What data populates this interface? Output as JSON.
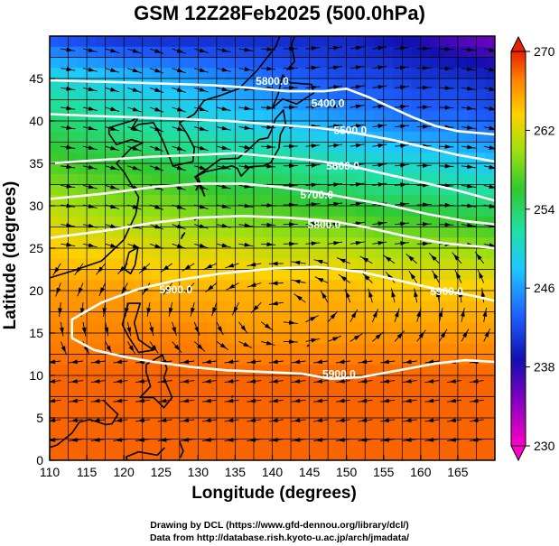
{
  "title": "GSM 12Z28Feb2025 (500.0hPa)",
  "xlabel": "Longitude (degrees)",
  "ylabel": "Latitude  (degrees)",
  "credit_line1": "Drawing by DCL (https://www.gfd-dennou.org/library/dcl/)",
  "credit_line2": "Data from http://database.rish.kyoto-u.ac.jp/arch/jmadata/",
  "chart_data": {
    "type": "heatmap",
    "x_range": [
      110,
      170
    ],
    "y_range": [
      0,
      50
    ],
    "x_ticks": [
      "110",
      "115",
      "120",
      "125",
      "130",
      "135",
      "140",
      "145",
      "150",
      "155",
      "160",
      "165"
    ],
    "y_ticks": [
      "0",
      "5",
      "10",
      "15",
      "20",
      "25",
      "30",
      "35",
      "40",
      "45"
    ],
    "colorbar": {
      "field": "temperature",
      "range": [
        230,
        270
      ],
      "tick_labels": [
        "270",
        "262",
        "254",
        "246",
        "238",
        "230"
      ]
    },
    "contour_labels": [
      "5800.0",
      "5400.0",
      "5500.0",
      "5600.0",
      "5700.0",
      "5800.0",
      "5900.0",
      "5900.0",
      "5900.0"
    ],
    "contours": [
      {
        "level": 5400,
        "points": [
          [
            110,
            44.8
          ],
          [
            118,
            44.6
          ],
          [
            125,
            44.4
          ],
          [
            132,
            44.2
          ],
          [
            137,
            43.9
          ],
          [
            142,
            43.5
          ],
          [
            147,
            43.5
          ],
          [
            150,
            43.8
          ],
          [
            153,
            42.8
          ],
          [
            156,
            41.6
          ],
          [
            159,
            40.4
          ],
          [
            162,
            39.4
          ],
          [
            165,
            38.8
          ],
          [
            170,
            38.4
          ]
        ]
      },
      {
        "level": 5500,
        "points": [
          [
            110,
            40.8
          ],
          [
            116,
            40.6
          ],
          [
            122,
            40.4
          ],
          [
            128,
            40.2
          ],
          [
            134,
            40.0
          ],
          [
            140,
            39.6
          ],
          [
            146,
            39.2
          ],
          [
            151,
            38.6
          ],
          [
            156,
            37.8
          ],
          [
            160,
            37.0
          ],
          [
            165,
            36.0
          ],
          [
            170,
            35.2
          ]
        ]
      },
      {
        "level": 5600,
        "points": [
          [
            110,
            35.0
          ],
          [
            117,
            35.4
          ],
          [
            124,
            35.8
          ],
          [
            130,
            36.0
          ],
          [
            135,
            36.2
          ],
          [
            140,
            35.8
          ],
          [
            145,
            35.4
          ],
          [
            150,
            34.8
          ],
          [
            155,
            33.8
          ],
          [
            160,
            32.8
          ],
          [
            165,
            31.8
          ],
          [
            170,
            30.6
          ]
        ]
      },
      {
        "level": 5700,
        "points": [
          [
            110,
            30.8
          ],
          [
            117,
            31.4
          ],
          [
            124,
            32.2
          ],
          [
            130,
            32.6
          ],
          [
            136,
            32.6
          ],
          [
            141,
            32.2
          ],
          [
            146,
            31.6
          ],
          [
            151,
            30.8
          ],
          [
            156,
            30.0
          ],
          [
            161,
            29.0
          ],
          [
            166,
            28.2
          ],
          [
            170,
            27.8
          ]
        ]
      },
      {
        "level": 5800,
        "points": [
          [
            110,
            26.2
          ],
          [
            117,
            27.0
          ],
          [
            124,
            28.0
          ],
          [
            130,
            28.6
          ],
          [
            136,
            28.8
          ],
          [
            142,
            28.6
          ],
          [
            148,
            28.2
          ],
          [
            153,
            27.4
          ],
          [
            158,
            26.4
          ],
          [
            163,
            25.6
          ],
          [
            170,
            25.0
          ]
        ]
      },
      {
        "level": 5900,
        "points": [
          [
            127,
            21.2
          ],
          [
            133,
            22.0
          ],
          [
            140,
            22.6
          ],
          [
            146,
            22.8
          ],
          [
            152,
            22.2
          ],
          [
            157,
            21.2
          ],
          [
            162,
            20.2
          ],
          [
            167,
            19.4
          ],
          [
            170,
            18.8
          ]
        ]
      },
      {
        "level": 5900,
        "points": [
          [
            127,
            21.2
          ],
          [
            122,
            20.2
          ],
          [
            117,
            18.6
          ],
          [
            113,
            16.6
          ],
          [
            113,
            14.4
          ],
          [
            116,
            13.0
          ],
          [
            120,
            12.2
          ],
          [
            124,
            11.6
          ],
          [
            129,
            11.0
          ],
          [
            134,
            10.6
          ],
          [
            139,
            10.4
          ],
          [
            144,
            10.2
          ],
          [
            148,
            9.6
          ],
          [
            152,
            9.8
          ],
          [
            157,
            10.6
          ],
          [
            162,
            11.4
          ],
          [
            166,
            11.8
          ],
          [
            170,
            11.6
          ]
        ]
      }
    ],
    "temperature_field": [
      {
        "lat": 50,
        "values": [
          242,
          241,
          240,
          240,
          240,
          240,
          240,
          240,
          240,
          239,
          238,
          236,
          235,
          234
        ]
      },
      {
        "lat": 45,
        "values": [
          250,
          249,
          248,
          247,
          246,
          245,
          244,
          243,
          242,
          242,
          241,
          241,
          240,
          239
        ]
      },
      {
        "lat": 40,
        "values": [
          254,
          253,
          252,
          251,
          250,
          249,
          248,
          247,
          246,
          245,
          244,
          244,
          243,
          242
        ]
      },
      {
        "lat": 35,
        "values": [
          257,
          256,
          256,
          255,
          254,
          253,
          253,
          252,
          251,
          250,
          250,
          249,
          248,
          247
        ]
      },
      {
        "lat": 30,
        "values": [
          261,
          260,
          259,
          259,
          258,
          257,
          257,
          256,
          256,
          255,
          255,
          254,
          254,
          253
        ]
      },
      {
        "lat": 25,
        "values": [
          264,
          263,
          263,
          262,
          262,
          262,
          261,
          261,
          261,
          260,
          260,
          260,
          259,
          259
        ]
      },
      {
        "lat": 20,
        "values": [
          266,
          266,
          266,
          265,
          265,
          265,
          265,
          265,
          265,
          264,
          264,
          264,
          264,
          264
        ]
      },
      {
        "lat": 15,
        "values": [
          267,
          267,
          267,
          267,
          267,
          266,
          266,
          266,
          266,
          266,
          266,
          266,
          266,
          266
        ]
      },
      {
        "lat": 10,
        "values": [
          268,
          268,
          268,
          268,
          268,
          268,
          268,
          268,
          268,
          268,
          268,
          268,
          268,
          268
        ]
      },
      {
        "lat": 5,
        "values": [
          268,
          268,
          268,
          268,
          268,
          268,
          268,
          268,
          268,
          268,
          268,
          268,
          268,
          268
        ]
      },
      {
        "lat": 0,
        "values": [
          268,
          268,
          268,
          268,
          268,
          268,
          268,
          268,
          268,
          268,
          268,
          268,
          268,
          268
        ]
      }
    ],
    "grid": true
  }
}
